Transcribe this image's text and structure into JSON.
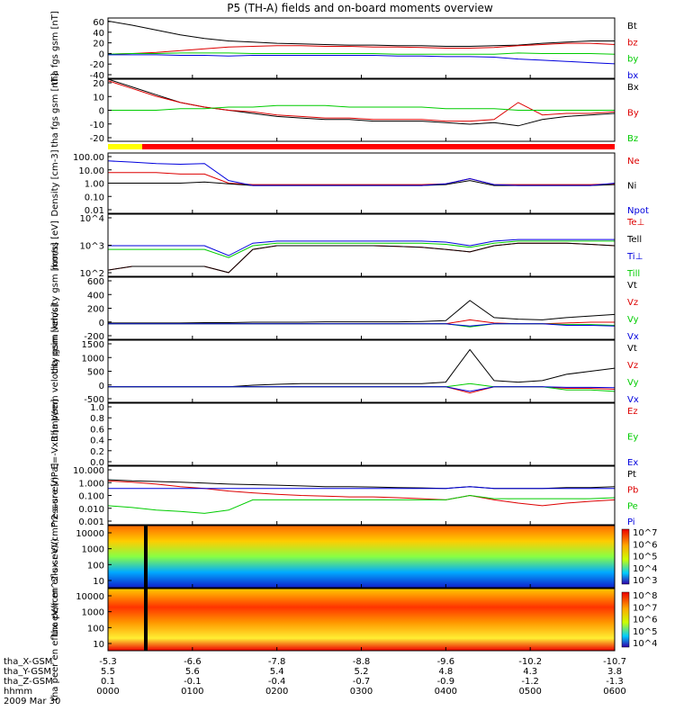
{
  "title": "P5 (TH-A) fields and on-board moments overview",
  "chart_data": [
    {
      "type": "line",
      "ylabel": "tha fgs gsm [nT]",
      "ylim": [
        -40,
        60
      ],
      "yticks": [
        "60",
        "40",
        "20",
        "0",
        "-20",
        "-40"
      ],
      "series": [
        {
          "name": "Bt",
          "color": "#000000",
          "values": [
            55,
            48,
            40,
            32,
            26,
            22,
            20,
            18,
            17,
            16,
            15,
            15,
            14,
            14,
            13,
            13,
            14,
            15,
            18,
            20,
            22,
            22
          ]
        },
        {
          "name": "bz",
          "color": "#dd0000",
          "values": [
            0,
            1,
            3,
            6,
            9,
            12,
            13,
            14,
            14,
            13,
            13,
            12,
            12,
            11,
            10,
            10,
            11,
            14,
            16,
            18,
            18,
            16
          ]
        },
        {
          "name": "by",
          "color": "#00cc00",
          "values": [
            0,
            1,
            1,
            2,
            2,
            2,
            1,
            1,
            1,
            1,
            1,
            1,
            0,
            0,
            0,
            0,
            0,
            2,
            1,
            1,
            1,
            0
          ]
        },
        {
          "name": "bx",
          "color": "#0000dd",
          "values": [
            -1,
            -1,
            -1,
            -2,
            -2,
            -3,
            -2,
            -2,
            -2,
            -2,
            -2,
            -2,
            -3,
            -3,
            -4,
            -4,
            -5,
            -8,
            -10,
            -12,
            -14,
            -16
          ]
        }
      ]
    },
    {
      "type": "line",
      "ylabel": "tha fgs gsm [nT]",
      "ylim": [
        -20,
        20
      ],
      "yticks": [
        "20",
        "10",
        "0",
        "-10",
        "-20"
      ],
      "series": [
        {
          "name": "Bx",
          "color": "#000000",
          "values": [
            20,
            15,
            10,
            5,
            2,
            0,
            -2,
            -4,
            -5,
            -6,
            -6,
            -7,
            -7,
            -7,
            -8,
            -9,
            -8,
            -10,
            -6,
            -4,
            -3,
            -2
          ]
        },
        {
          "name": "By",
          "color": "#dd0000",
          "values": [
            19,
            14,
            9,
            5,
            2,
            0,
            -1,
            -3,
            -4,
            -5,
            -5,
            -6,
            -6,
            -6,
            -7,
            -7,
            -6,
            5,
            -3,
            -2,
            -2,
            -1
          ]
        },
        {
          "name": "Bz",
          "color": "#00cc00",
          "values": [
            0,
            0,
            0,
            1,
            1,
            2,
            2,
            3,
            3,
            3,
            2,
            2,
            2,
            2,
            1,
            1,
            1,
            0,
            0,
            0,
            0,
            0
          ]
        }
      ]
    },
    {
      "type": "line",
      "ylabel": "Density [cm-3]",
      "yscale": "log",
      "ylim": [
        0.01,
        100
      ],
      "yticks": [
        "100.00",
        "10.00",
        "1.00",
        "0.10",
        "0.01"
      ],
      "series": [
        {
          "name": "Ne",
          "color": "#dd0000",
          "values": [
            5,
            5,
            5,
            4,
            4,
            1,
            0.8,
            0.8,
            0.8,
            0.8,
            0.8,
            0.8,
            0.8,
            0.8,
            0.9,
            2,
            0.8,
            0.8,
            0.8,
            0.8,
            0.8,
            0.9
          ]
        },
        {
          "name": "Ni",
          "color": "#000000",
          "values": [
            1,
            1,
            1,
            1,
            1.2,
            0.9,
            0.7,
            0.7,
            0.7,
            0.7,
            0.7,
            0.7,
            0.7,
            0.7,
            0.8,
            1.5,
            0.7,
            0.7,
            0.7,
            0.7,
            0.7,
            0.8
          ]
        },
        {
          "name": "Npot",
          "color": "#0000dd",
          "values": [
            30,
            25,
            20,
            18,
            20,
            1.5,
            0.7,
            0.7,
            0.7,
            0.7,
            0.7,
            0.7,
            0.7,
            0.7,
            0.9,
            2,
            0.8,
            0.7,
            0.7,
            0.7,
            0.7,
            1
          ]
        }
      ]
    },
    {
      "type": "line",
      "ylabel": "moms [eV]",
      "yscale": "log",
      "ylim": [
        100,
        100000
      ],
      "yticks": [
        "10^4",
        "10^3",
        "10^2"
      ],
      "series": [
        {
          "name": "Te⊥",
          "color": "#dd0000",
          "values": [
            200,
            300,
            300,
            300,
            300,
            150,
            2000,
            3000,
            3000,
            3000,
            3000,
            3000,
            2800,
            2500,
            2000,
            1500,
            3000,
            4000,
            4000,
            4000,
            3500,
            3000
          ]
        },
        {
          "name": "Tell",
          "color": "#000000",
          "values": [
            200,
            300,
            300,
            300,
            300,
            150,
            2000,
            3000,
            3000,
            3000,
            3000,
            3000,
            2800,
            2500,
            2000,
            1500,
            3000,
            4000,
            4000,
            4000,
            3500,
            3000
          ]
        },
        {
          "name": "Ti⊥",
          "color": "#0000dd",
          "values": [
            3000,
            3000,
            3000,
            3000,
            3000,
            1000,
            4000,
            5000,
            5000,
            5000,
            5000,
            5000,
            5000,
            5000,
            4500,
            3000,
            5000,
            6000,
            6000,
            6000,
            6000,
            6000
          ]
        },
        {
          "name": "Till",
          "color": "#00cc00",
          "values": [
            2000,
            2000,
            2000,
            2000,
            2000,
            800,
            3000,
            4000,
            4000,
            4000,
            4000,
            4000,
            4000,
            4000,
            3500,
            2500,
            4000,
            5000,
            5000,
            5000,
            5000,
            5000
          ]
        }
      ]
    },
    {
      "type": "line",
      "ylabel": "tha peim velocity gsm [km/s]",
      "ylim": [
        -200,
        600
      ],
      "yticks": [
        "600",
        "400",
        "200",
        "0",
        "-200"
      ],
      "series": [
        {
          "name": "Vt",
          "color": "#000000",
          "values": [
            10,
            10,
            10,
            10,
            15,
            15,
            20,
            20,
            20,
            25,
            25,
            25,
            25,
            30,
            40,
            300,
            80,
            60,
            50,
            80,
            100,
            120
          ]
        },
        {
          "name": "Vz",
          "color": "#dd0000",
          "values": [
            0,
            0,
            0,
            0,
            0,
            0,
            0,
            0,
            0,
            0,
            0,
            0,
            0,
            0,
            0,
            50,
            10,
            0,
            0,
            10,
            20,
            20
          ]
        },
        {
          "name": "Vy",
          "color": "#00cc00",
          "values": [
            0,
            0,
            0,
            0,
            0,
            0,
            0,
            0,
            0,
            0,
            0,
            0,
            0,
            0,
            0,
            -40,
            0,
            0,
            0,
            -10,
            -10,
            -20
          ]
        },
        {
          "name": "Vx",
          "color": "#0000dd",
          "values": [
            0,
            0,
            0,
            0,
            0,
            0,
            0,
            0,
            0,
            0,
            0,
            0,
            0,
            0,
            0,
            -30,
            0,
            0,
            0,
            -20,
            -20,
            -30
          ]
        }
      ]
    },
    {
      "type": "line",
      "ylabel": "tha peem velocity gsm [km/s]",
      "ylim": [
        -500,
        1500
      ],
      "yticks": [
        "1500",
        "1000",
        "500",
        "0",
        "-500"
      ],
      "series": [
        {
          "name": "Vt",
          "color": "#000000",
          "values": [
            0,
            0,
            0,
            0,
            0,
            0,
            50,
            80,
            100,
            100,
            100,
            100,
            100,
            100,
            150,
            1200,
            200,
            150,
            200,
            400,
            500,
            600
          ]
        },
        {
          "name": "Vz",
          "color": "#dd0000",
          "values": [
            0,
            0,
            0,
            0,
            0,
            0,
            0,
            0,
            0,
            0,
            0,
            0,
            0,
            0,
            0,
            -200,
            0,
            0,
            0,
            -50,
            -50,
            -80
          ]
        },
        {
          "name": "Vy",
          "color": "#00cc00",
          "values": [
            0,
            0,
            0,
            0,
            0,
            0,
            0,
            0,
            0,
            0,
            0,
            0,
            0,
            0,
            0,
            100,
            0,
            0,
            0,
            -100,
            -100,
            -150
          ]
        },
        {
          "name": "Vx",
          "color": "#0000dd",
          "values": [
            0,
            0,
            0,
            0,
            0,
            0,
            0,
            0,
            0,
            0,
            0,
            0,
            0,
            0,
            0,
            -150,
            0,
            0,
            0,
            -20,
            -20,
            -30
          ]
        }
      ]
    },
    {
      "type": "line",
      "ylabel": "E=-VxB [mV/m]",
      "ylim": [
        0,
        1
      ],
      "yticks": [
        "1.0",
        "0.8",
        "0.6",
        "0.4",
        "0.2",
        "0.0"
      ],
      "series": [
        {
          "name": "Ez",
          "color": "#dd0000",
          "values": []
        },
        {
          "name": "Ey",
          "color": "#00cc00",
          "values": []
        },
        {
          "name": "Ex",
          "color": "#0000dd",
          "values": []
        }
      ]
    },
    {
      "type": "line",
      "ylabel": "Pressure [nPa]",
      "yscale": "log",
      "ylim": [
        0.001,
        10
      ],
      "yticks": [
        "10.000",
        "1.000",
        "0.100",
        "0.010",
        "0.001"
      ],
      "series": [
        {
          "name": "Pt",
          "color": "#000000",
          "values": [
            1.2,
            1.0,
            0.9,
            0.8,
            0.7,
            0.6,
            0.55,
            0.5,
            0.45,
            0.4,
            0.4,
            0.38,
            0.35,
            0.33,
            0.3,
            0.4,
            0.3,
            0.3,
            0.3,
            0.35,
            0.35,
            0.4
          ]
        },
        {
          "name": "Pb",
          "color": "#dd0000",
          "values": [
            1.0,
            0.8,
            0.6,
            0.4,
            0.3,
            0.2,
            0.15,
            0.12,
            0.1,
            0.09,
            0.08,
            0.08,
            0.07,
            0.06,
            0.05,
            0.1,
            0.05,
            0.03,
            0.02,
            0.03,
            0.04,
            0.05
          ]
        },
        {
          "name": "Pe",
          "color": "#00cc00",
          "values": [
            0.02,
            0.015,
            0.01,
            0.008,
            0.006,
            0.01,
            0.05,
            0.05,
            0.05,
            0.05,
            0.05,
            0.05,
            0.05,
            0.05,
            0.05,
            0.1,
            0.06,
            0.06,
            0.06,
            0.06,
            0.06,
            0.07
          ]
        },
        {
          "name": "Pi",
          "color": "#0000dd",
          "values": [
            0.3,
            0.3,
            0.3,
            0.3,
            0.3,
            0.3,
            0.3,
            0.3,
            0.3,
            0.3,
            0.3,
            0.3,
            0.3,
            0.3,
            0.3,
            0.4,
            0.3,
            0.3,
            0.3,
            0.3,
            0.3,
            0.3
          ]
        }
      ]
    },
    {
      "type": "heatmap",
      "ylabel": "tha peir en eflux eV/(cm^2-s-sr-eV)",
      "yticks": [
        "10000",
        "1000",
        "100",
        "10"
      ],
      "colorbar": [
        "10^7",
        "10^6",
        "10^5",
        "10^4",
        "10^3"
      ]
    },
    {
      "type": "heatmap",
      "ylabel": "tha peer en eflux eV/(cm^2-s-sr-eV)",
      "yticks": [
        "10000",
        "1000",
        "100",
        "10"
      ],
      "colorbar": [
        "10^8",
        "10^7",
        "10^6",
        "10^5",
        "10^4"
      ]
    }
  ],
  "xaxis": {
    "rows": [
      {
        "label": "tha_X-GSM",
        "values": [
          "-5.3",
          "-6.6",
          "-7.8",
          "-8.8",
          "-9.6",
          "-10.2",
          "-10.7"
        ]
      },
      {
        "label": "tha_Y-GSM",
        "values": [
          "5.5",
          "5.6",
          "5.4",
          "5.2",
          "4.8",
          "4.3",
          "3.8"
        ]
      },
      {
        "label": "tha_Z-GSM",
        "values": [
          "0.1",
          "-0.1",
          "-0.4",
          "-0.7",
          "-0.9",
          "-1.2",
          "-1.3"
        ]
      },
      {
        "label": "hhmm",
        "values": [
          "0000",
          "0100",
          "0200",
          "0300",
          "0400",
          "0500",
          "0600"
        ]
      }
    ],
    "date": "2009 Mar 30"
  }
}
